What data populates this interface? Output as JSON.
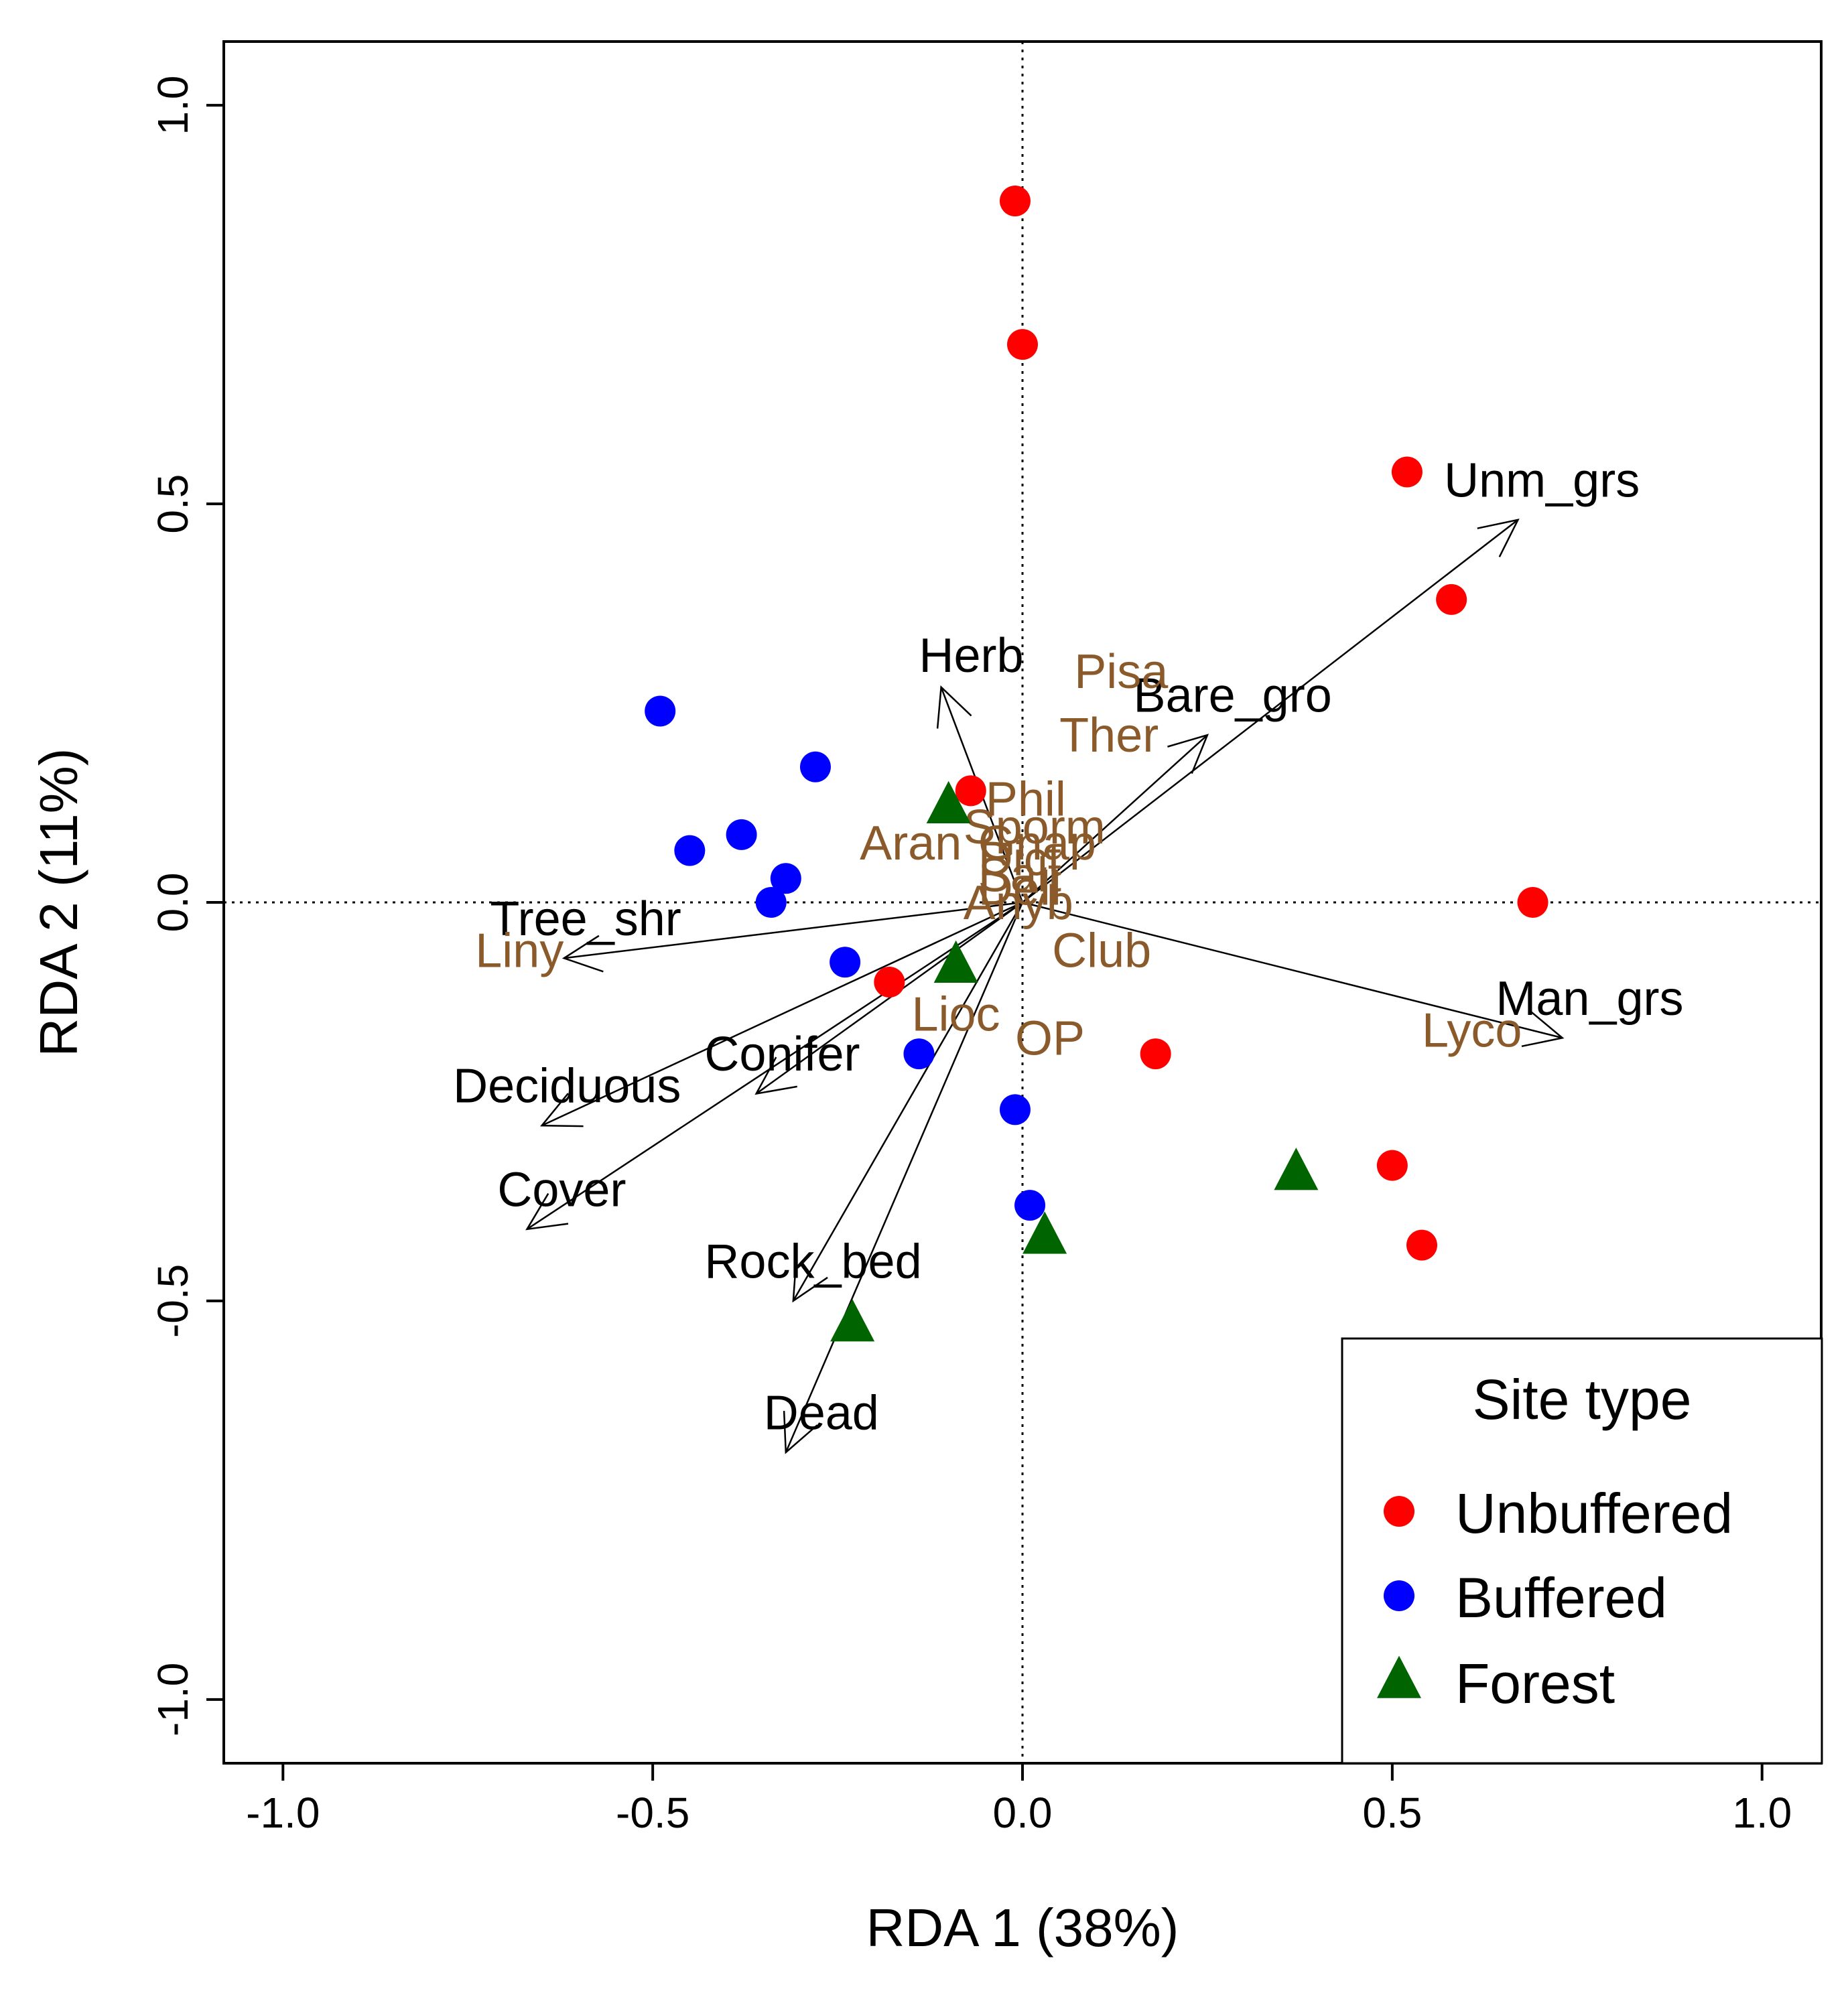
{
  "chart_data": {
    "type": "scatter",
    "title": "",
    "xlabel": "RDA 1 (38%)",
    "ylabel": "RDA 2 (11%)",
    "xlim": [
      -1.08,
      1.08
    ],
    "ylim": [
      -1.08,
      1.08
    ],
    "x_ticks": [
      -1.0,
      -0.5,
      0.0,
      0.5,
      1.0
    ],
    "x_tick_labels": [
      "-1.0",
      "-0.5",
      "0.0",
      "0.5",
      "1.0"
    ],
    "y_ticks": [
      -1.0,
      -0.5,
      0.0,
      0.5,
      1.0
    ],
    "y_tick_labels": [
      "-1.0",
      "-0.5",
      "0.0",
      "0.5",
      "1.0"
    ],
    "reference_lines": {
      "x": 0,
      "y": 0,
      "style": "dotted"
    },
    "series": [
      {
        "name": "Unbuffered",
        "color": "#ff0000",
        "marker": "circle",
        "points": [
          {
            "x": -0.01,
            "y": 0.88
          },
          {
            "x": 0.0,
            "y": 0.7
          },
          {
            "x": 0.52,
            "y": 0.54
          },
          {
            "x": 0.58,
            "y": 0.38
          },
          {
            "x": -0.07,
            "y": 0.14
          },
          {
            "x": 0.69,
            "y": 0.0
          },
          {
            "x": -0.18,
            "y": -0.1
          },
          {
            "x": 0.18,
            "y": -0.19
          },
          {
            "x": 0.5,
            "y": -0.33
          },
          {
            "x": 0.54,
            "y": -0.43
          }
        ]
      },
      {
        "name": "Buffered",
        "color": "#0000ff",
        "marker": "circle",
        "points": [
          {
            "x": -0.49,
            "y": 0.24
          },
          {
            "x": -0.28,
            "y": 0.17
          },
          {
            "x": -0.38,
            "y": 0.085
          },
          {
            "x": -0.45,
            "y": 0.065
          },
          {
            "x": -0.32,
            "y": 0.03
          },
          {
            "x": -0.34,
            "y": 0.0
          },
          {
            "x": -0.24,
            "y": -0.075
          },
          {
            "x": -0.14,
            "y": -0.19
          },
          {
            "x": -0.01,
            "y": -0.26
          },
          {
            "x": 0.01,
            "y": -0.38
          }
        ]
      },
      {
        "name": "Forest",
        "color": "#006400",
        "marker": "triangle",
        "points": [
          {
            "x": -0.1,
            "y": 0.12
          },
          {
            "x": -0.09,
            "y": -0.08
          },
          {
            "x": 0.37,
            "y": -0.34
          },
          {
            "x": 0.03,
            "y": -0.42
          },
          {
            "x": -0.23,
            "y": -0.53
          }
        ]
      }
    ],
    "arrows": [
      {
        "label": "Unm_grs",
        "x": 0.67,
        "y": 0.48,
        "label_x": 0.57,
        "label_y": 0.53
      },
      {
        "label": "Bare_gro",
        "x": 0.25,
        "y": 0.21,
        "label_x": 0.15,
        "label_y": 0.26
      },
      {
        "label": "Herb",
        "x": -0.11,
        "y": 0.27,
        "label_x": -0.14,
        "label_y": 0.31
      },
      {
        "label": "Tree_shr",
        "x": -0.62,
        "y": -0.07,
        "label_x": -0.72,
        "label_y": -0.02
      },
      {
        "label": "Man_grs",
        "x": 0.73,
        "y": -0.17,
        "label_x": 0.64,
        "label_y": -0.12
      },
      {
        "label": "Conifer",
        "x": -0.36,
        "y": -0.24,
        "label_x": -0.43,
        "label_y": -0.19
      },
      {
        "label": "Deciduous",
        "x": -0.65,
        "y": -0.28,
        "label_x": -0.77,
        "label_y": -0.23
      },
      {
        "label": "Cover",
        "x": -0.67,
        "y": -0.41,
        "label_x": -0.71,
        "label_y": -0.36
      },
      {
        "label": "Rock_bed",
        "x": -0.31,
        "y": -0.5,
        "label_x": -0.43,
        "label_y": -0.45
      },
      {
        "label": "Dead",
        "x": -0.32,
        "y": -0.69,
        "label_x": -0.35,
        "label_y": -0.64
      }
    ],
    "species": [
      {
        "label": "Pisa",
        "x": 0.07,
        "y": 0.29
      },
      {
        "label": "Ther",
        "x": 0.05,
        "y": 0.21
      },
      {
        "label": "Phil",
        "x": -0.05,
        "y": 0.13
      },
      {
        "label": "Sporm",
        "x": -0.08,
        "y": 0.095
      },
      {
        "label": "Aran",
        "x": -0.22,
        "y": 0.075
      },
      {
        "label": "Gnap",
        "x": -0.06,
        "y": 0.075
      },
      {
        "label": "Dict",
        "x": -0.06,
        "y": 0.055
      },
      {
        "label": "Salt",
        "x": -0.06,
        "y": 0.035
      },
      {
        "label": "Dell",
        "x": -0.06,
        "y": 0.018
      },
      {
        "label": "Anyb",
        "x": -0.08,
        "y": 0.0
      },
      {
        "label": "Club",
        "x": 0.04,
        "y": -0.06
      },
      {
        "label": "Liny",
        "x": -0.74,
        "y": -0.06
      },
      {
        "label": "Lioc",
        "x": -0.15,
        "y": -0.14
      },
      {
        "label": "OP",
        "x": -0.01,
        "y": -0.17
      },
      {
        "label": "Lyco",
        "x": 0.54,
        "y": -0.16
      }
    ],
    "species_color": "#8b5a2b",
    "legend": {
      "title": "Site type",
      "position": "bottom-right",
      "entries": [
        "Unbuffered",
        "Buffered",
        "Forest"
      ]
    }
  }
}
